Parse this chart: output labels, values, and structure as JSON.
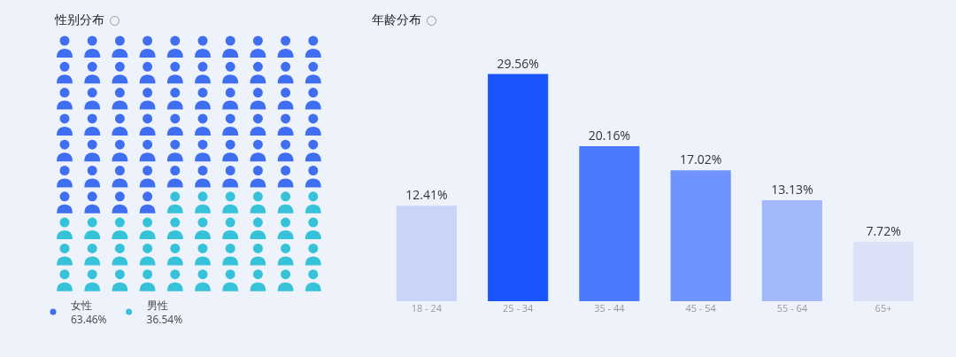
{
  "chart_data": [
    {
      "type": "other",
      "title": "性别分布",
      "categories": [
        "女性",
        "男性"
      ],
      "values": [
        63.46,
        36.54
      ],
      "value_labels": [
        "63.46%",
        "36.54%"
      ],
      "colors": [
        "#3f6ff0",
        "#36c3d9"
      ]
    },
    {
      "type": "bar",
      "title": "年龄分布",
      "categories": [
        "18 - 24",
        "25 - 34",
        "35 - 44",
        "45 - 54",
        "55 - 64",
        "65+"
      ],
      "values": [
        12.41,
        29.56,
        20.16,
        17.02,
        13.13,
        7.72
      ],
      "value_labels": [
        "12.41%",
        "29.56%",
        "20.16%",
        "17.02%",
        "13.13%",
        "7.72%"
      ],
      "colors": [
        "#c9d4f8",
        "#1a55fe",
        "#4a7afe",
        "#6e93fc",
        "#a2b8fb",
        "#dbe2f8"
      ]
    }
  ]
}
